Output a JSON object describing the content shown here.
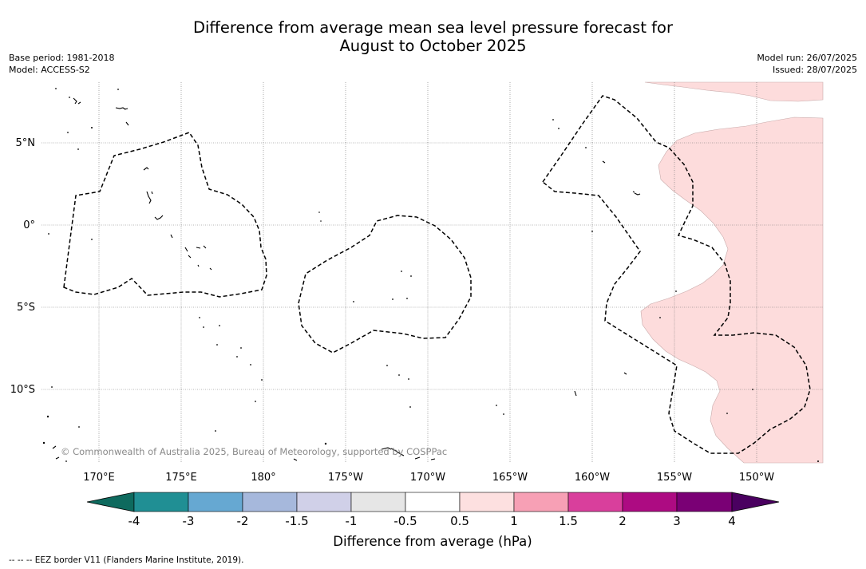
{
  "title": {
    "line1": "Difference from average mean sea level pressure forecast for",
    "line2": "August to October 2025"
  },
  "meta_left": {
    "base_period": "Base period: 1981-2018",
    "model": "Model: ACCESS-S2"
  },
  "meta_right": {
    "model_run": "Model run: 26/07/2025",
    "issued": "Issued: 28/07/2025"
  },
  "map": {
    "lon_labels": [
      "170°E",
      "175°E",
      "180°",
      "175°W",
      "170°W",
      "165°W",
      "160°W",
      "155°W",
      "150°W"
    ],
    "lat_labels": [
      "5°N",
      "0°",
      "5°S",
      "10°S"
    ],
    "copyright": "© Commonwealth of Australia 2025, Bureau of Meteorology, supported by COSPPac"
  },
  "colorbar": {
    "label": "Difference from average (hPa)",
    "ticks": [
      "-4",
      "-3",
      "-2",
      "-1.5",
      "-1",
      "-0.5",
      "0.5",
      "1",
      "1.5",
      "2",
      "3",
      "4"
    ],
    "bins": [
      "#208f94",
      "#66a8d2",
      "#a6b8dc",
      "#d0d0e8",
      "#e6e6e6",
      "#ffffff",
      "#fde0e0",
      "#f7a0b5",
      "#d93f9c",
      "#ad0b82",
      "#7a0075"
    ],
    "under_color": "#0e6a5e",
    "over_color": "#4a0060"
  },
  "fill_color": "#fddcdc",
  "footnote": "--  --  -- EEZ border V11 (Flanders Marine Institute, 2019)."
}
